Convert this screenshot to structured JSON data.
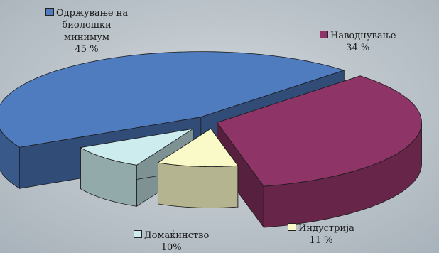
{
  "chart_data": {
    "type": "pie",
    "three_d": true,
    "exploded": true,
    "title": "",
    "slices": [
      {
        "label_lines": [
          "Одржување на",
          "биолошки",
          "минимум"
        ],
        "value": 45,
        "value_label": "45 %",
        "color": "#4f7bbf"
      },
      {
        "label_lines": [
          "Наводнување"
        ],
        "value": 34,
        "value_label": "34 %",
        "color": "#8e3466"
      },
      {
        "label_lines": [
          "Индустрија"
        ],
        "value": 11,
        "value_label": "11 %",
        "color": "#fafac8"
      },
      {
        "label_lines": [
          "Домаќинство"
        ],
        "value": 10,
        "value_label": "10%",
        "color": "#ccecee"
      }
    ],
    "legend": "labels with swatches beside each slice"
  }
}
